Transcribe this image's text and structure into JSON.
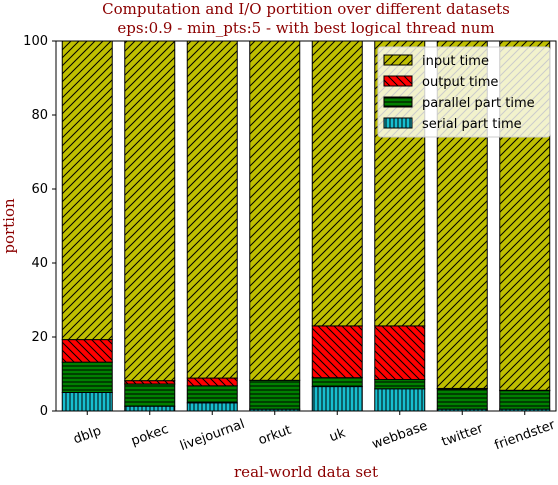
{
  "chart_data": {
    "type": "bar",
    "stacked": true,
    "title": "Computation and I/O portition over different datasets",
    "subtitle": "eps:0.9 - min_pts:5 - with best logical thread num",
    "xlabel": "real-world data set",
    "ylabel": "portion",
    "ylim": [
      0,
      100
    ],
    "yticks": [
      "0",
      "20",
      "40",
      "60",
      "80",
      "100"
    ],
    "categories": [
      "dblp",
      "pokec",
      "livejournal",
      "orkut",
      "uk",
      "webbase",
      "twitter",
      "friendster"
    ],
    "series": [
      {
        "name": "serial part time",
        "color": "#17becf",
        "hatch": "vertical",
        "values": [
          5.0,
          1.3,
          2.2,
          0.5,
          6.6,
          6.0,
          0.5,
          0.5
        ]
      },
      {
        "name": "parallel part time",
        "color": "#008000",
        "hatch": "horizontal",
        "values": [
          8.2,
          6.0,
          4.6,
          7.8,
          2.4,
          2.5,
          5.5,
          5.0
        ]
      },
      {
        "name": "output time",
        "color": "#ff0000",
        "hatch": "diagonal",
        "values": [
          6.1,
          0.9,
          2.1,
          0.0,
          14.0,
          14.5,
          0.1,
          0.1
        ]
      },
      {
        "name": "input time",
        "color": "#bfbf00",
        "hatch": "diagonal-back",
        "values": [
          80.7,
          91.8,
          91.1,
          91.7,
          77.0,
          77.0,
          93.9,
          94.4
        ]
      }
    ],
    "legend": {
      "placement": "top-right",
      "order": [
        "input time",
        "output time",
        "parallel part time",
        "serial part time"
      ]
    },
    "title_color": "#8b0000",
    "grid": false
  }
}
